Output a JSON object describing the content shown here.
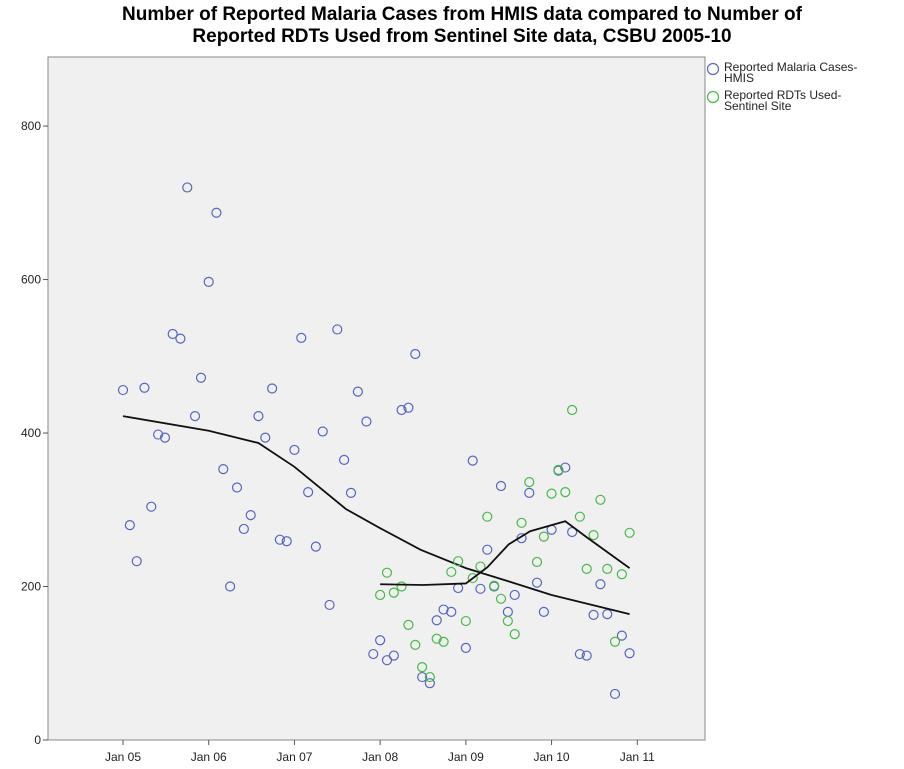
{
  "chart_data": {
    "type": "scatter",
    "title": [
      "Number of Reported Malaria Cases from HMIS data compared to Number of",
      "Reported RDTs Used from Sentinel Site data, CSBU 2005-10"
    ],
    "xlim": [
      2004.125,
      2011.79
    ],
    "ylim": [
      0,
      890
    ],
    "xticks": [
      {
        "value": 2005,
        "label": "Jan 05"
      },
      {
        "value": 2006,
        "label": "Jan 06"
      },
      {
        "value": 2007,
        "label": "Jan 07"
      },
      {
        "value": 2008,
        "label": "Jan 08"
      },
      {
        "value": 2009,
        "label": "Jan 09"
      },
      {
        "value": 2010,
        "label": "Jan 10"
      },
      {
        "value": 2011,
        "label": "Jan 11"
      }
    ],
    "yticks": [
      0,
      200,
      400,
      600,
      800
    ],
    "grid": false,
    "legend": "right",
    "series": [
      {
        "name": "Reported Malaria Cases-HMIS",
        "color": "#5566c0",
        "x": [
          2005.0,
          2005.08,
          2005.16,
          2005.25,
          2005.33,
          2005.41,
          2005.49,
          2005.58,
          2005.67,
          2005.75,
          2005.84,
          2005.91,
          2006.0,
          2006.09,
          2006.17,
          2006.25,
          2006.33,
          2006.41,
          2006.49,
          2006.58,
          2006.66,
          2006.74,
          2006.83,
          2006.91,
          2007.0,
          2007.08,
          2007.16,
          2007.25,
          2007.33,
          2007.41,
          2007.5,
          2007.58,
          2007.66,
          2007.74,
          2007.84,
          2007.92,
          2008.0,
          2008.08,
          2008.16,
          2008.25,
          2008.33,
          2008.41,
          2008.49,
          2008.58,
          2008.66,
          2008.74,
          2008.83,
          2008.91,
          2009.0,
          2009.08,
          2009.17,
          2009.25,
          2009.33,
          2009.41,
          2009.49,
          2009.57,
          2009.65,
          2009.74,
          2009.83,
          2009.91,
          2010.0,
          2010.08,
          2010.16,
          2010.24,
          2010.33,
          2010.41,
          2010.49,
          2010.57,
          2010.65,
          2010.74,
          2010.82,
          2010.91
        ],
        "values": [
          456,
          280,
          233,
          459,
          304,
          398,
          394,
          529,
          523,
          720,
          422,
          472,
          597,
          687,
          353,
          200,
          329,
          275,
          293,
          422,
          394,
          458,
          261,
          259,
          378,
          524,
          323,
          252,
          402,
          176,
          535,
          365,
          322,
          454,
          415,
          112,
          130,
          104,
          110,
          430,
          433,
          503,
          82,
          74,
          156,
          170,
          167,
          198,
          120,
          364,
          197,
          248,
          200,
          331,
          167,
          189,
          263,
          322,
          205,
          167,
          274,
          351,
          355,
          271,
          112,
          110,
          163,
          203,
          164,
          60,
          136,
          113
        ],
        "fit": {
          "color": "#111",
          "x": [
            2005,
            2006,
            2006.58,
            2007,
            2007.6,
            2008,
            2008.47,
            2009,
            2009.49,
            2010,
            2010.91
          ],
          "values": [
            422,
            403,
            387,
            356,
            301,
            276,
            248,
            224,
            207,
            189,
            164
          ]
        }
      },
      {
        "name": "Reported RDTs Used-Sentinel Site",
        "color": "#44bb44",
        "x": [
          2008.0,
          2008.08,
          2008.16,
          2008.25,
          2008.33,
          2008.41,
          2008.49,
          2008.58,
          2008.66,
          2008.74,
          2008.83,
          2008.91,
          2009.0,
          2009.08,
          2009.17,
          2009.25,
          2009.33,
          2009.41,
          2009.49,
          2009.57,
          2009.65,
          2009.74,
          2009.83,
          2009.91,
          2010.0,
          2010.08,
          2010.16,
          2010.24,
          2010.33,
          2010.41,
          2010.49,
          2010.57,
          2010.65,
          2010.74,
          2010.82,
          2010.91
        ],
        "values": [
          189,
          218,
          192,
          200,
          150,
          124,
          95,
          82,
          132,
          128,
          219,
          233,
          155,
          211,
          226,
          291,
          201,
          184,
          155,
          138,
          283,
          336,
          232,
          265,
          321,
          352,
          323,
          430,
          291,
          223,
          267,
          313,
          223,
          128,
          216,
          270
        ],
        "fit": {
          "color": "#111",
          "x": [
            2008.0,
            2008.5,
            2009.0,
            2009.25,
            2009.5,
            2009.75,
            2010.0,
            2010.16,
            2010.4,
            2010.91
          ],
          "values": [
            203,
            202,
            204,
            225,
            255,
            272,
            280,
            285,
            265,
            224
          ]
        }
      }
    ]
  }
}
